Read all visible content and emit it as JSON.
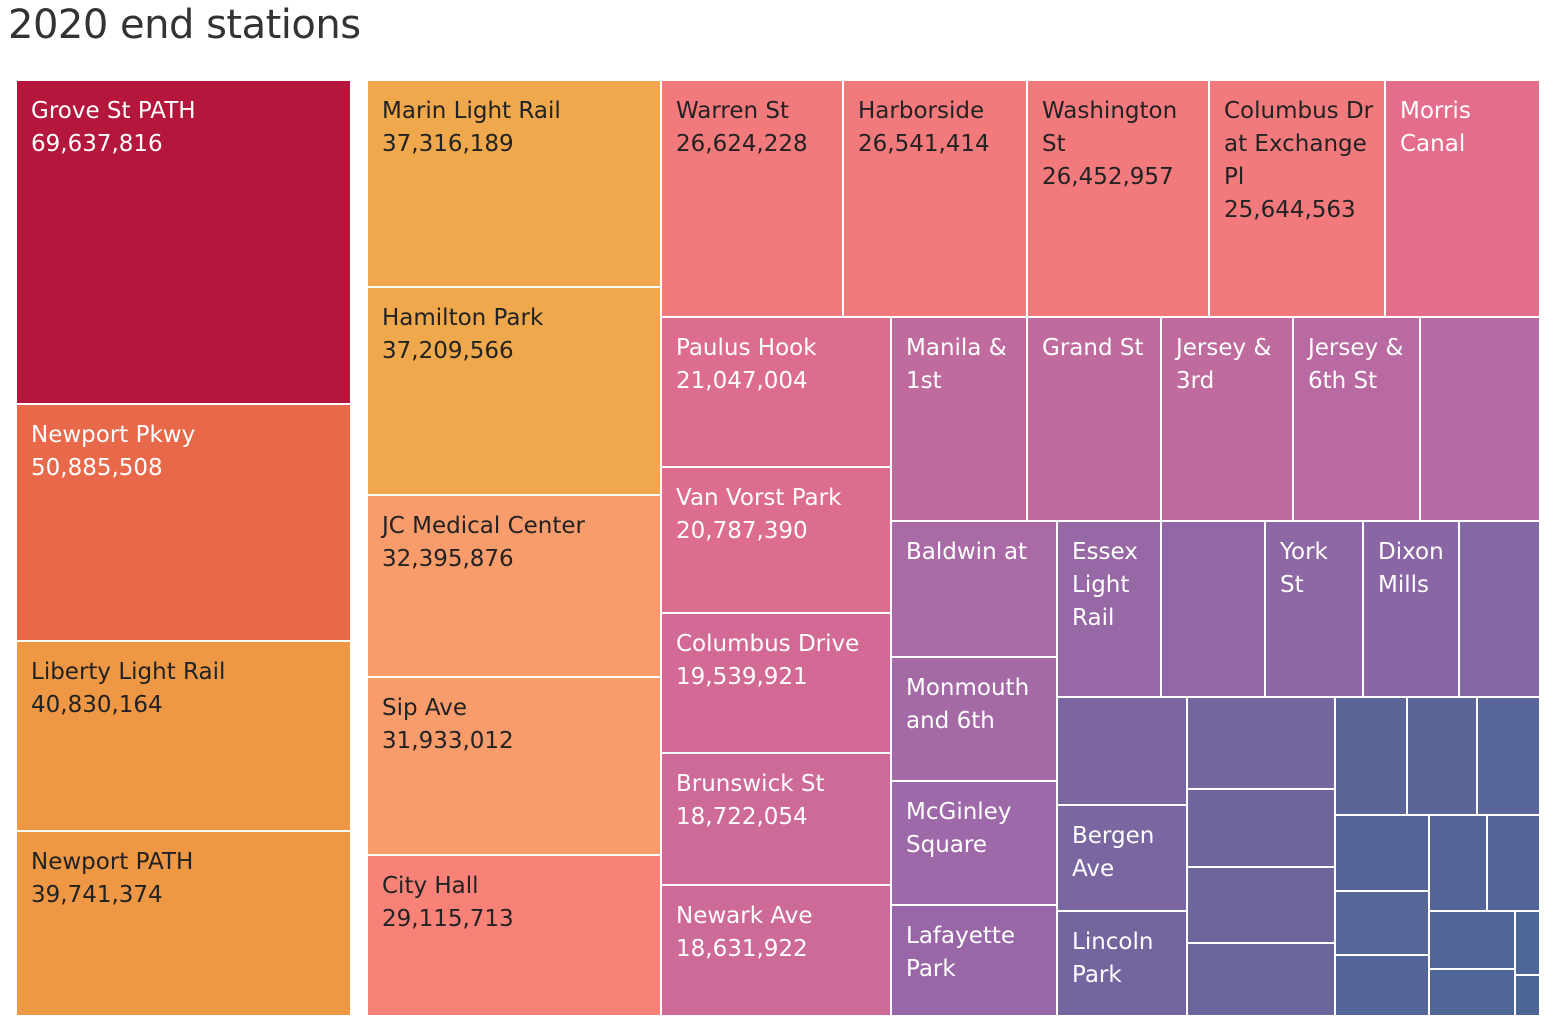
{
  "title": "2020 end stations",
  "chart_data": {
    "type": "treemap",
    "title": "2020 end stations",
    "items": [
      {
        "name": "Grove St PATH",
        "value": 69637816,
        "value_label": "69,637,816",
        "color": "#b5173c",
        "text_color": "#ffffff"
      },
      {
        "name": "Newport Pkwy",
        "value": 50885508,
        "value_label": "50,885,508",
        "color": "#e8694a",
        "text_color": "#ffffff"
      },
      {
        "name": "Liberty Light Rail",
        "value": 40830164,
        "value_label": "40,830,164",
        "color": "#ee9745",
        "text_color": "#222222"
      },
      {
        "name": "Newport PATH",
        "value": 39741374,
        "value_label": "39,741,374",
        "color": "#ee9745",
        "text_color": "#222222"
      },
      {
        "name": "Marin Light Rail",
        "value": 37316189,
        "value_label": "37,316,189",
        "color": "#f0a84d",
        "text_color": "#222222"
      },
      {
        "name": "Hamilton Park",
        "value": 37209566,
        "value_label": "37,209,566",
        "color": "#f0a84d",
        "text_color": "#222222"
      },
      {
        "name": "JC Medical Center",
        "value": 32395876,
        "value_label": "32,395,876",
        "color": "#f99c6b",
        "text_color": "#222222"
      },
      {
        "name": "Sip Ave",
        "value": 31933012,
        "value_label": "31,933,012",
        "color": "#f99c6b",
        "text_color": "#222222"
      },
      {
        "name": "City Hall",
        "value": 29115713,
        "value_label": "29,115,713",
        "color": "#f88278",
        "text_color": "#222222"
      },
      {
        "name": "Warren St",
        "value": 26624228,
        "value_label": "26,624,228",
        "color": "#f27a7d",
        "text_color": "#222222"
      },
      {
        "name": "Harborside",
        "value": 26541414,
        "value_label": "26,541,414",
        "color": "#f27a7d",
        "text_color": "#222222"
      },
      {
        "name": "Washington St",
        "value": 26452957,
        "value_label": "26,452,957",
        "color": "#f27a7d",
        "text_color": "#222222"
      },
      {
        "name": "Columbus Dr at Exchange Pl",
        "value": 25644563,
        "value_label": "25,644,563",
        "color": "#f27a7d",
        "text_color": "#222222"
      },
      {
        "name": "Morris Canal",
        "value_label": "",
        "color": "#e46d8c",
        "text_color": "#ffffff"
      },
      {
        "name": "Paulus Hook",
        "value": 21047004,
        "value_label": "21,047,004",
        "color": "#dc6d8d",
        "text_color": "#ffffff"
      },
      {
        "name": "Van Vorst Park",
        "value": 20787390,
        "value_label": "20,787,390",
        "color": "#dc6d8d",
        "text_color": "#ffffff"
      },
      {
        "name": "Columbus Drive",
        "value": 19539921,
        "value_label": "19,539,921",
        "color": "#d26a95",
        "text_color": "#ffffff"
      },
      {
        "name": "Brunswick St",
        "value": 18722054,
        "value_label": "18,722,054",
        "color": "#cd6a97",
        "text_color": "#ffffff"
      },
      {
        "name": "Newark Ave",
        "value": 18631922,
        "value_label": "18,631,922",
        "color": "#cd6a97",
        "text_color": "#ffffff"
      },
      {
        "name": "Manila & 1st",
        "value_label": "",
        "color": "#bf6b9e",
        "text_color": "#ffffff"
      },
      {
        "name": "Grand St",
        "value_label": "",
        "color": "#bf6b9e",
        "text_color": "#ffffff"
      },
      {
        "name": "Jersey & 3rd",
        "value_label": "",
        "color": "#bf6b9e",
        "text_color": "#ffffff"
      },
      {
        "name": "Jersey & 6th St",
        "value_label": "",
        "color": "#b96aa2",
        "text_color": "#ffffff"
      },
      {
        "name": "",
        "value_label": "",
        "color": "#b46aa4",
        "text_color": "#ffffff"
      },
      {
        "name": "Baldwin at",
        "value_label": "",
        "color": "#a96aa5",
        "text_color": "#ffffff"
      },
      {
        "name": "Monmouth and 6th",
        "value_label": "",
        "color": "#a46aa6",
        "text_color": "#ffffff"
      },
      {
        "name": "McGinley Square",
        "value_label": "",
        "color": "#9e69a8",
        "text_color": "#ffffff"
      },
      {
        "name": "Lafayette Park",
        "value_label": "",
        "color": "#9967a8",
        "text_color": "#ffffff"
      },
      {
        "name": "Essex Light Rail",
        "value_label": "",
        "color": "#9668a5",
        "text_color": "#ffffff"
      },
      {
        "name": "",
        "value_label": "",
        "color": "#9366a5",
        "text_color": "#ffffff"
      },
      {
        "name": "York St",
        "value_label": "",
        "color": "#8e67a5",
        "text_color": "#ffffff"
      },
      {
        "name": "Dixon Mills",
        "value_label": "",
        "color": "#8a66a4",
        "text_color": "#ffffff"
      },
      {
        "name": "",
        "value_label": "",
        "color": "#8368a4",
        "text_color": "#ffffff"
      },
      {
        "name": "",
        "value_label": "",
        "color": "#7c66a1",
        "text_color": "#ffffff"
      },
      {
        "name": "Bergen Ave",
        "value_label": "",
        "color": "#7a67a1",
        "text_color": "#ffffff"
      },
      {
        "name": "Lincoln Park",
        "value_label": "",
        "color": "#75659e",
        "text_color": "#ffffff"
      },
      {
        "name": "",
        "value_label": "",
        "color": "#75669f",
        "text_color": "#ffffff"
      },
      {
        "name": "",
        "value_label": "",
        "color": "#70669d",
        "text_color": "#ffffff"
      },
      {
        "name": "",
        "value_label": "",
        "color": "#6d669d",
        "text_color": "#ffffff"
      },
      {
        "name": "",
        "value_label": "",
        "color": "#69669c",
        "text_color": "#ffffff"
      },
      {
        "name": "",
        "value_label": "",
        "color": "#5c6597",
        "text_color": "#ffffff"
      },
      {
        "name": "",
        "value_label": "",
        "color": "#5b6598",
        "text_color": "#ffffff"
      },
      {
        "name": "",
        "value_label": "",
        "color": "#59669a",
        "text_color": "#ffffff"
      },
      {
        "name": "",
        "value_label": "",
        "color": "#57649a",
        "text_color": "#ffffff"
      },
      {
        "name": "",
        "value_label": "",
        "color": "#566698",
        "text_color": "#ffffff"
      },
      {
        "name": "",
        "value_label": "",
        "color": "#546699",
        "text_color": "#ffffff"
      },
      {
        "name": "",
        "value_label": "",
        "color": "#556597",
        "text_color": "#ffffff"
      },
      {
        "name": "",
        "value_label": "",
        "color": "#526596",
        "text_color": "#ffffff"
      },
      {
        "name": "",
        "value_label": "",
        "color": "#516697",
        "text_color": "#ffffff"
      },
      {
        "name": "",
        "value_label": "",
        "color": "#506697",
        "text_color": "#ffffff"
      },
      {
        "name": "",
        "value_label": "",
        "color": "#4e6695",
        "text_color": "#ffffff"
      },
      {
        "name": "",
        "value_label": "",
        "color": "#4c6594",
        "text_color": "#ffffff"
      }
    ]
  }
}
